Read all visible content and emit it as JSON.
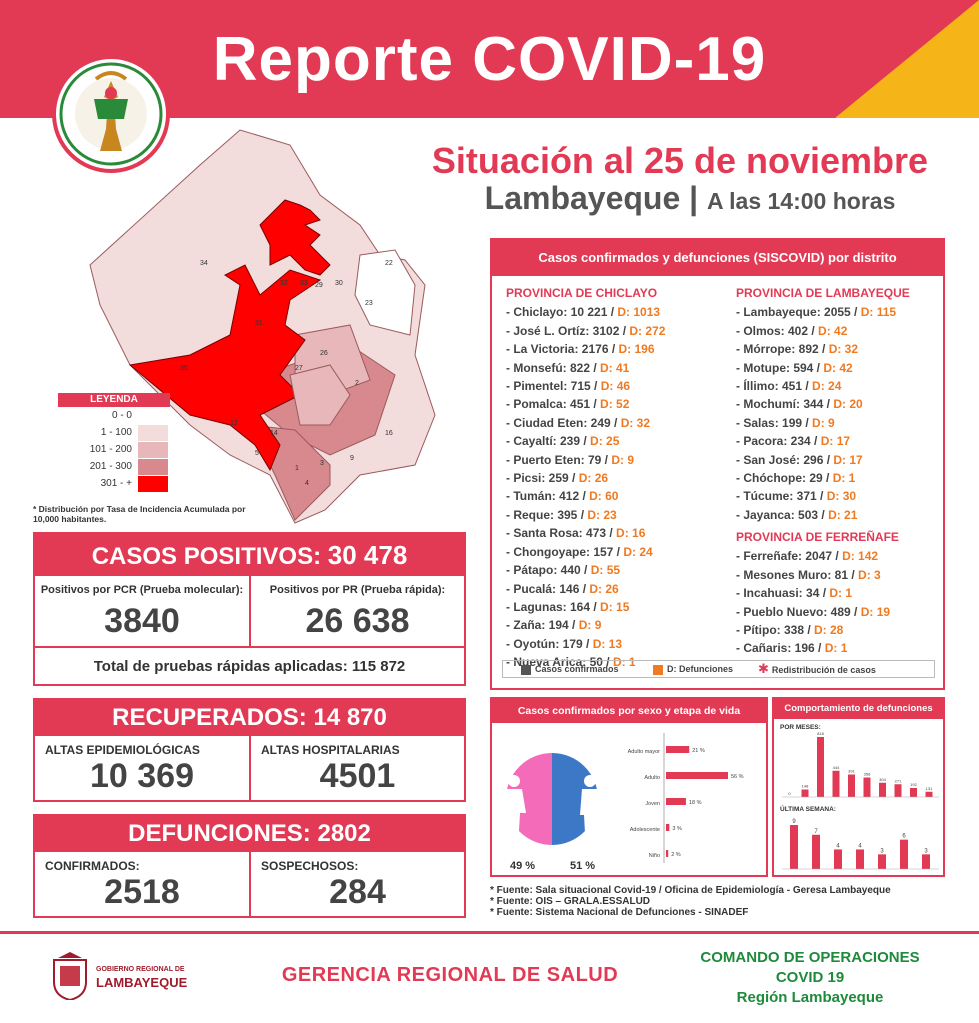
{
  "header": {
    "title": "Reporte COVID-19"
  },
  "situation": {
    "date": "Situación al 25 de noviembre",
    "region": "Lambayeque",
    "sep": "|",
    "time": "A las 14:00 horas"
  },
  "logo": {
    "text": "COMANDO DE OPERACIONES REGIONAL LAMBAYEQUE"
  },
  "legend": {
    "title": "LEYENDA",
    "rows": [
      {
        "range": "0  -    0",
        "color": "#ffffff"
      },
      {
        "range": "1  -  100",
        "color": "#f3dcdc"
      },
      {
        "range": "101  -  200",
        "color": "#e8b7b9"
      },
      {
        "range": "201  -  300",
        "color": "#d8898e"
      },
      {
        "range": "301  -    +",
        "color": "#ff0000"
      }
    ]
  },
  "map_note": "* Distribución por Tasa de Incidencia Acumulada por 10,000 habitantes.",
  "map_numbers": [
    "34",
    "35",
    "31",
    "32",
    "30",
    "33",
    "29",
    "22",
    "23",
    "27",
    "26",
    "28",
    "21",
    "20",
    "19",
    "18",
    "17",
    "16",
    "15",
    "14",
    "13",
    "12",
    "11",
    "10",
    "9",
    "8",
    "7",
    "6",
    "5",
    "4",
    "3",
    "2",
    "1"
  ],
  "casos": {
    "label": "CASOS POSITIVOS:",
    "value": "30 478",
    "pcr_label": "Positivos por PCR (Prueba molecular):",
    "pcr_value": "3840",
    "pr_label": "Positivos por PR (Prueba rápida):",
    "pr_value": "26 638",
    "total_label": "Total de pruebas rápidas aplicadas: 115 872"
  },
  "recuperados": {
    "label": "RECUPERADOS:",
    "value": "14 870",
    "epi_label": "ALTAS EPIDEMIOLÓGICAS",
    "epi_value": "10 369",
    "hosp_label": "ALTAS HOSPITALARIAS",
    "hosp_value": "4501"
  },
  "defunciones": {
    "label": "DEFUNCIONES:",
    "value": "2802",
    "conf_label": "CONFIRMADOS:",
    "conf_value": "2518",
    "sosp_label": "SOSPECHOSOS:",
    "sosp_value": "284"
  },
  "distritos": {
    "title": "Casos confirmados y defunciones (SISCOVID) por distrito",
    "chiclayo": {
      "name": "PROVINCIA DE CHICLAYO",
      "items": [
        {
          "n": "- Chiclayo: 10 221 / ",
          "d": "D: 1013"
        },
        {
          "n": "- José L. Ortíz: 3102 / ",
          "d": "D: 272"
        },
        {
          "n": "- La Victoria: 2176 / ",
          "d": "D: 196"
        },
        {
          "n": "- Monsefú: 822 / ",
          "d": "D: 41"
        },
        {
          "n": "- Pimentel: 715 / ",
          "d": "D: 46"
        },
        {
          "n": "- Pomalca: 451 / ",
          "d": "D: 52"
        },
        {
          "n": "- Ciudad Eten: 249 / ",
          "d": "D: 32"
        },
        {
          "n": "- Cayaltí: 239 / ",
          "d": "D: 25"
        },
        {
          "n": "- Puerto Eten: 79 / ",
          "d": "D: 9"
        },
        {
          "n": "- Picsi: 259 / ",
          "d": "D: 26"
        },
        {
          "n": "- Tumán: 412 / ",
          "d": "D: 60"
        },
        {
          "n": "- Reque: 395 / ",
          "d": "D: 23"
        },
        {
          "n": "- Santa Rosa: 473 / ",
          "d": "D: 16"
        },
        {
          "n": "- Chongoyape: 157 / ",
          "d": "D: 24"
        },
        {
          "n": "- Pátapo: 440 / ",
          "d": "D: 55"
        },
        {
          "n": "- Pucalá: 146 / ",
          "d": "D: 26"
        },
        {
          "n": "- Lagunas: 164 / ",
          "d": "D: 15"
        },
        {
          "n": "- Zaña: 194 / ",
          "d": "D: 9"
        },
        {
          "n": "- Oyotún: 179 / ",
          "d": "D: 13"
        },
        {
          "n": "- Nueva Arica: 50 / ",
          "d": "D: 1"
        }
      ]
    },
    "lambayeque": {
      "name": "PROVINCIA DE LAMBAYEQUE",
      "items": [
        {
          "n": "- Lambayeque: 2055 / ",
          "d": "D: 115"
        },
        {
          "n": "- Olmos: 402 / ",
          "d": "D: 42"
        },
        {
          "n": "- Mórrope: 892 / ",
          "d": "D: 32"
        },
        {
          "n": "- Motupe: 594 / ",
          "d": "D: 42"
        },
        {
          "n": "- Íllimo: 451 / ",
          "d": "D: 24"
        },
        {
          "n": "- Mochumí: 344 / ",
          "d": "D: 20"
        },
        {
          "n": "- Salas: 199 / ",
          "d": "D: 9"
        },
        {
          "n": "- Pacora: 234 / ",
          "d": "D: 17"
        },
        {
          "n": "- San José: 296 / ",
          "d": "D: 17"
        },
        {
          "n": "- Chóchope: 29 / ",
          "d": "D: 1"
        },
        {
          "n": "- Túcume: 371 / ",
          "d": "D: 30"
        },
        {
          "n": "- Jayanca: 503 / ",
          "d": "D: 21"
        }
      ]
    },
    "ferrenafe": {
      "name": "PROVINCIA DE FERREÑAFE",
      "items": [
        {
          "n": "- Ferreñafe: 2047 / ",
          "d": "D: 142"
        },
        {
          "n": "- Mesones Muro: 81 / ",
          "d": "D: 3"
        },
        {
          "n": "- Incahuasi: 34 / ",
          "d": "D: 1"
        },
        {
          "n": "- Pueblo Nuevo: 489 / ",
          "d": "D: 19"
        },
        {
          "n": "- Pítipo: 338 / ",
          "d": "D: 28"
        },
        {
          "n": "- Cañaris: 196 / ",
          "d": "D: 1"
        }
      ]
    },
    "legend": {
      "a": "Casos confirmados",
      "b": "D: Defunciones",
      "c": "Redistribución de casos",
      "a_color": "#555555",
      "b_color": "#f07a22",
      "c_color": "#e23a55"
    }
  },
  "sexo": {
    "title": "Casos confirmados por sexo y etapa de vida",
    "female_pct": "49 %",
    "male_pct": "51 %",
    "female_color": "#f36bb9",
    "male_color": "#3d78c6",
    "chart_data": {
      "type": "bar",
      "categories": [
        "Adulto mayor",
        "Adulto",
        "Joven",
        "Adolescente",
        "Niño"
      ],
      "values": [
        21,
        56,
        18,
        3,
        2
      ],
      "labels": [
        "21 %",
        "56 %",
        "18 %",
        "3 %",
        "2 %"
      ]
    }
  },
  "comportamiento": {
    "title": "Comportamiento de defunciones",
    "por_meses": "POR MESES:",
    "ultima_semana": "ÚLTIMA SEMANA:",
    "chart_data": [
      {
        "type": "bar",
        "values": [
          0,
          1,
          8,
          3.5,
          3,
          2.6,
          1.9,
          1.7,
          1.2,
          0.7
        ],
        "labels": [
          "0",
          "148",
          "818",
          "444",
          "391",
          "358",
          "304",
          "271",
          "192",
          "131"
        ]
      },
      {
        "type": "bar",
        "values": [
          9,
          7,
          4,
          4,
          3,
          6,
          3
        ],
        "labels": [
          "9",
          "7",
          "4",
          "4",
          "3",
          "6",
          "3"
        ]
      }
    ]
  },
  "fuentes": [
    "* Fuente: Sala situacional Covid-19 / Oficina de Epidemiología - Geresa Lambayeque",
    "* Fuente: OIS – GRALA.ESSALUD",
    "* Fuente: Sistema Nacional de Defunciones - SINADEF"
  ],
  "footer": {
    "gob_small": "GOBIERNO REGIONAL DE",
    "gob_big": "LAMBAYEQUE",
    "gerencia": "GERENCIA REGIONAL DE SALUD",
    "comando1": "COMANDO DE OPERACIONES",
    "comando2": "COVID 19",
    "comando3": "Región Lambayeque"
  }
}
